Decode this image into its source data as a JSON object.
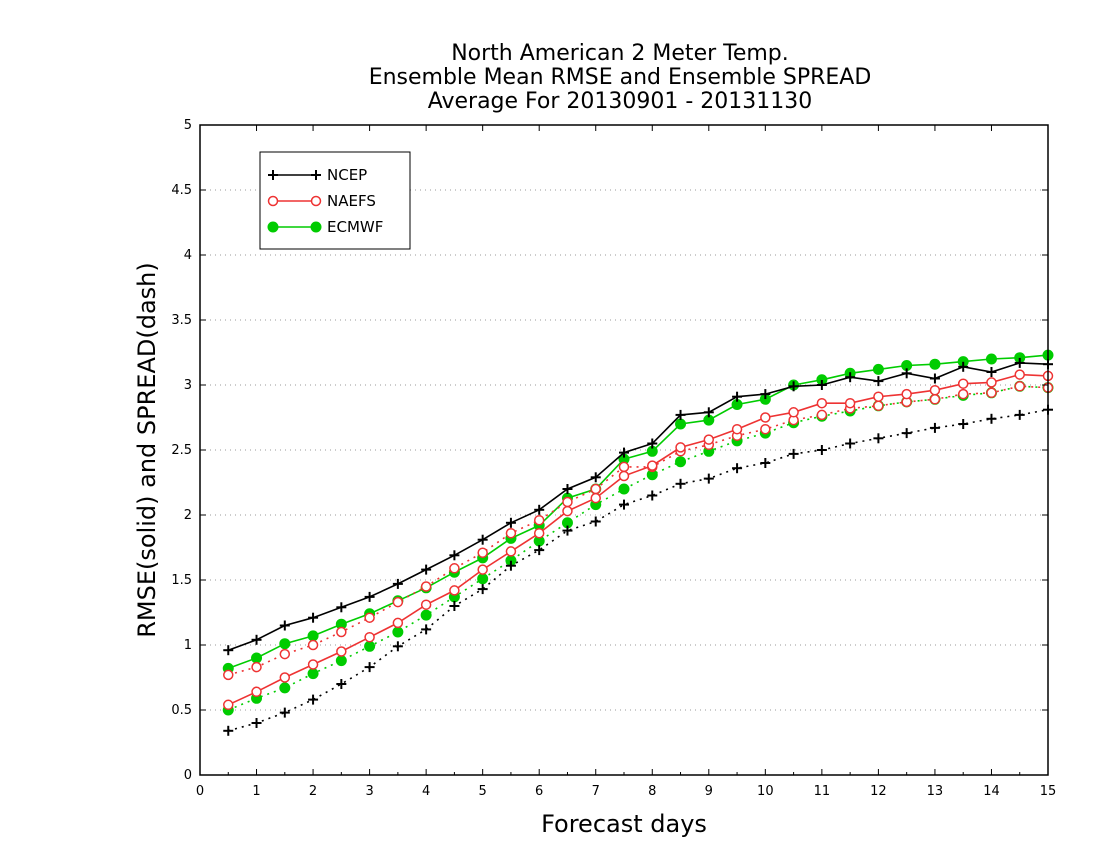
{
  "chart_data": {
    "type": "line",
    "title_lines": [
      "North American 2 Meter Temp.",
      "Ensemble Mean RMSE and Ensemble SPREAD",
      "Average For 20130901 - 20131130"
    ],
    "xlabel": "Forecast days",
    "ylabel": "RMSE(solid) and SPREAD(dash)",
    "xlim": [
      0,
      15
    ],
    "ylim": [
      0,
      5
    ],
    "x_ticks": [
      0,
      1,
      2,
      3,
      4,
      5,
      6,
      7,
      8,
      9,
      10,
      11,
      12,
      13,
      14,
      15
    ],
    "y_ticks": [
      0,
      0.5,
      1,
      1.5,
      2,
      2.5,
      3,
      3.5,
      4,
      4.5,
      5
    ],
    "y_tick_labels": [
      "0",
      "0.5",
      "1",
      "1.5",
      "2",
      "2.5",
      "3",
      "3.5",
      "4",
      "4.5",
      "5"
    ],
    "grid": "horizontal-dotted",
    "legend_position": "top-left",
    "x": [
      0.5,
      1,
      1.5,
      2,
      2.5,
      3,
      3.5,
      4,
      4.5,
      5,
      5.5,
      6,
      6.5,
      7,
      7.5,
      8,
      8.5,
      9,
      9.5,
      10,
      10.5,
      11,
      11.5,
      12,
      12.5,
      13,
      13.5,
      14,
      14.5,
      15
    ],
    "series": [
      {
        "name": "NCEP",
        "color": "#000000",
        "marker": "plus",
        "rmse": [
          0.96,
          1.04,
          1.15,
          1.21,
          1.29,
          1.37,
          1.47,
          1.58,
          1.69,
          1.81,
          1.94,
          2.04,
          2.2,
          2.29,
          2.48,
          2.55,
          2.77,
          2.79,
          2.91,
          2.93,
          2.99,
          3.0,
          3.06,
          3.03,
          3.09,
          3.05,
          3.14,
          3.1,
          3.17,
          3.16
        ],
        "spread": [
          0.34,
          0.4,
          0.48,
          0.58,
          0.7,
          0.83,
          0.99,
          1.12,
          1.3,
          1.43,
          1.61,
          1.73,
          1.88,
          1.95,
          2.08,
          2.15,
          2.24,
          2.28,
          2.36,
          2.4,
          2.47,
          2.5,
          2.55,
          2.59,
          2.63,
          2.67,
          2.7,
          2.74,
          2.77,
          2.81
        ]
      },
      {
        "name": "NAEFS",
        "color": "#ee3333",
        "marker": "open-circle",
        "rmse": [
          0.54,
          0.64,
          0.75,
          0.85,
          0.95,
          1.06,
          1.17,
          1.31,
          1.42,
          1.58,
          1.72,
          1.86,
          2.03,
          2.13,
          2.3,
          2.38,
          2.52,
          2.58,
          2.66,
          2.75,
          2.79,
          2.86,
          2.86,
          2.91,
          2.93,
          2.96,
          3.01,
          3.02,
          3.08,
          3.07
        ],
        "spread": [
          0.77,
          0.83,
          0.93,
          1.0,
          1.1,
          1.21,
          1.33,
          1.45,
          1.59,
          1.71,
          1.86,
          1.96,
          2.1,
          2.2,
          2.37,
          2.37,
          2.49,
          2.54,
          2.61,
          2.66,
          2.73,
          2.77,
          2.82,
          2.84,
          2.87,
          2.89,
          2.93,
          2.94,
          2.99,
          2.98
        ]
      },
      {
        "name": "ECMWF",
        "color": "#00cc00",
        "marker": "filled-circle",
        "rmse": [
          0.82,
          0.9,
          1.01,
          1.07,
          1.16,
          1.24,
          1.34,
          1.44,
          1.56,
          1.67,
          1.82,
          1.92,
          2.13,
          2.2,
          2.43,
          2.49,
          2.7,
          2.73,
          2.85,
          2.89,
          3.0,
          3.04,
          3.09,
          3.12,
          3.15,
          3.16,
          3.18,
          3.2,
          3.21,
          3.23
        ],
        "spread": [
          0.5,
          0.59,
          0.67,
          0.78,
          0.88,
          0.99,
          1.1,
          1.23,
          1.37,
          1.51,
          1.65,
          1.8,
          1.94,
          2.08,
          2.2,
          2.31,
          2.41,
          2.49,
          2.57,
          2.63,
          2.71,
          2.76,
          2.8,
          2.84,
          2.87,
          2.89,
          2.92,
          2.94,
          2.99,
          2.98
        ]
      }
    ]
  }
}
